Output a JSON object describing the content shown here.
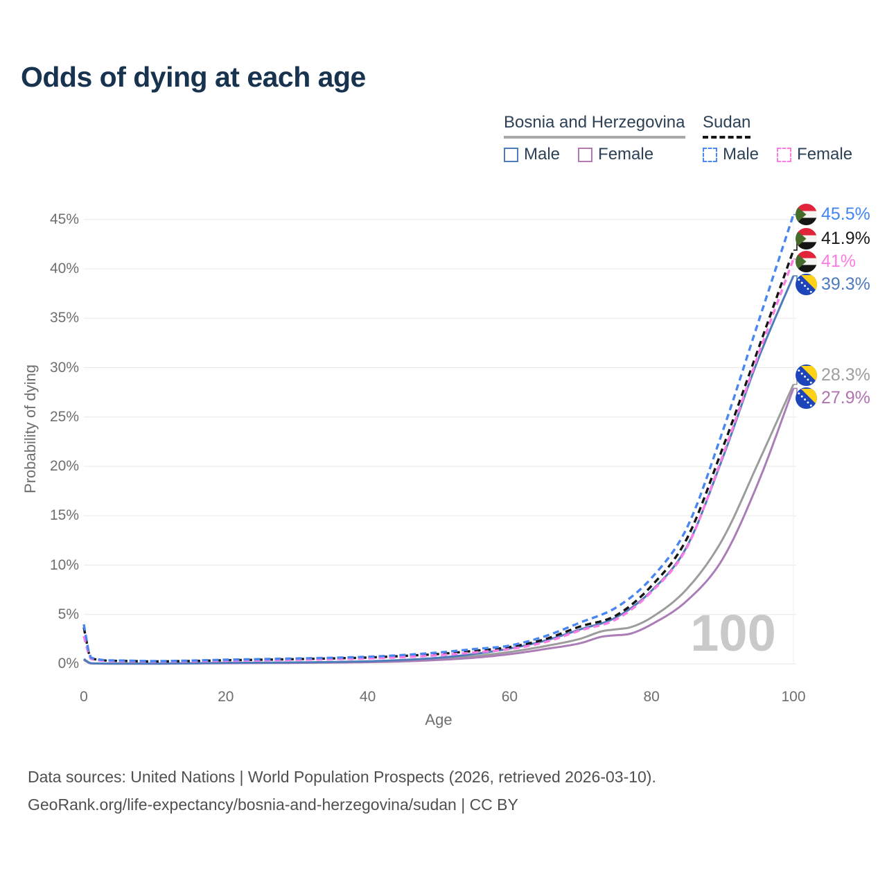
{
  "title": "Odds of dying at each age",
  "legend": {
    "groups": [
      {
        "name": "Bosnia and Herzegovina",
        "underline_color": "#a8a8a8",
        "underline_style": "solid",
        "items": [
          {
            "label": "Male",
            "color": "#4d7cba",
            "style": "solid"
          },
          {
            "label": "Female",
            "color": "#b579b2",
            "style": "solid"
          }
        ]
      },
      {
        "name": "Sudan",
        "underline_color": "#161616",
        "underline_style": "dashed",
        "items": [
          {
            "label": "Male",
            "color": "#4a86f0",
            "style": "dashed"
          },
          {
            "label": "Female",
            "color": "#fb7ce4",
            "style": "dashed"
          }
        ]
      }
    ]
  },
  "watermark": "100",
  "footer": {
    "line1": "Data sources: United Nations | World Population Prospects (2026, retrieved 2026-03-10).",
    "line2": "GeoRank.org/life-expectancy/bosnia-and-herzegovina/sudan | CC BY"
  },
  "colors": {
    "title_text": "#18334f",
    "legend_text": "#2c4156",
    "axis_text": "#6e6e6e",
    "gridline": "#e8e8e8",
    "watermark": "#c9c9c9",
    "footer_text": "#4f4f4f"
  },
  "chart_data": {
    "type": "line",
    "title": "Odds of dying at each age",
    "xlabel": "Age",
    "ylabel": "Probability of dying",
    "xlim": [
      0,
      100
    ],
    "ylim": [
      0,
      45
    ],
    "x_ticks": [
      0,
      20,
      40,
      60,
      80,
      100
    ],
    "y_ticks": [
      {
        "value": 0,
        "label": "0%"
      },
      {
        "value": 5,
        "label": "5%"
      },
      {
        "value": 10,
        "label": "10%"
      },
      {
        "value": 15,
        "label": "15%"
      },
      {
        "value": 20,
        "label": "20%"
      },
      {
        "value": 25,
        "label": "25%"
      },
      {
        "value": 30,
        "label": "30%"
      },
      {
        "value": 35,
        "label": "35%"
      },
      {
        "value": 40,
        "label": "40%"
      },
      {
        "value": 45,
        "label": "45%"
      }
    ],
    "grid": "horizontal",
    "legend_position": "top-right",
    "series": [
      {
        "name": "Bosnia and Herzegovina — Both sexes",
        "country": "Bosnia and Herzegovina",
        "sex": "both",
        "color": "#9c9c9c",
        "dashed": false,
        "flag": "bosnia",
        "end_label": {
          "text": "28.3%",
          "value": 28.3,
          "color": "#9e9e9e"
        },
        "points": [
          [
            0,
            0.45
          ],
          [
            1,
            0.05
          ],
          [
            5,
            0.025
          ],
          [
            10,
            0.025
          ],
          [
            15,
            0.05
          ],
          [
            20,
            0.08
          ],
          [
            25,
            0.1
          ],
          [
            30,
            0.12
          ],
          [
            35,
            0.16
          ],
          [
            40,
            0.21
          ],
          [
            45,
            0.32
          ],
          [
            50,
            0.5
          ],
          [
            55,
            0.78
          ],
          [
            60,
            1.2
          ],
          [
            65,
            1.8
          ],
          [
            70,
            2.55
          ],
          [
            73,
            3.3
          ],
          [
            75,
            3.5
          ],
          [
            77,
            3.7
          ],
          [
            80,
            4.7
          ],
          [
            85,
            7.6
          ],
          [
            90,
            12.6
          ],
          [
            95,
            20.3
          ],
          [
            100,
            28.3
          ]
        ]
      },
      {
        "name": "Bosnia and Herzegovina — Female",
        "country": "Bosnia and Herzegovina",
        "sex": "female",
        "color": "#ab7db6",
        "dashed": false,
        "flag": "bosnia",
        "end_label": {
          "text": "27.9%",
          "value": 27.9,
          "color": "#b073ae"
        },
        "points": [
          [
            0,
            0.4
          ],
          [
            1,
            0.045
          ],
          [
            5,
            0.02
          ],
          [
            10,
            0.02
          ],
          [
            15,
            0.04
          ],
          [
            20,
            0.06
          ],
          [
            25,
            0.08
          ],
          [
            30,
            0.1
          ],
          [
            35,
            0.13
          ],
          [
            40,
            0.17
          ],
          [
            45,
            0.25
          ],
          [
            50,
            0.4
          ],
          [
            55,
            0.62
          ],
          [
            60,
            0.98
          ],
          [
            65,
            1.5
          ],
          [
            70,
            2.1
          ],
          [
            73,
            2.75
          ],
          [
            75,
            2.9
          ],
          [
            77,
            3.05
          ],
          [
            80,
            4.0
          ],
          [
            85,
            6.4
          ],
          [
            90,
            10.6
          ],
          [
            95,
            18.3
          ],
          [
            100,
            27.9
          ]
        ]
      },
      {
        "name": "Bosnia and Herzegovina — Male",
        "country": "Bosnia and Herzegovina",
        "sex": "male",
        "color": "#4d7cba",
        "dashed": false,
        "flag": "bosnia",
        "end_label": {
          "text": "39.3%",
          "value": 39.3,
          "color": "#4d7cba"
        },
        "points": [
          [
            0,
            0.5
          ],
          [
            1,
            0.06
          ],
          [
            5,
            0.03
          ],
          [
            10,
            0.03
          ],
          [
            15,
            0.06
          ],
          [
            20,
            0.1
          ],
          [
            25,
            0.12
          ],
          [
            30,
            0.15
          ],
          [
            35,
            0.19
          ],
          [
            40,
            0.26
          ],
          [
            45,
            0.4
          ],
          [
            50,
            0.62
          ],
          [
            55,
            1.0
          ],
          [
            60,
            1.55
          ],
          [
            65,
            2.35
          ],
          [
            70,
            3.5
          ],
          [
            75,
            4.7
          ],
          [
            80,
            7.4
          ],
          [
            85,
            11.9
          ],
          [
            90,
            20.8
          ],
          [
            95,
            30.8
          ],
          [
            100,
            39.3
          ]
        ]
      },
      {
        "name": "Sudan — Both sexes",
        "country": "Sudan",
        "sex": "both",
        "color": "#161616",
        "dashed": true,
        "flag": "sudan",
        "end_label": {
          "text": "41.9%",
          "value": 41.9,
          "color": "#1a1a1a"
        },
        "points": [
          [
            0,
            3.7
          ],
          [
            1,
            0.56
          ],
          [
            5,
            0.3
          ],
          [
            10,
            0.25
          ],
          [
            15,
            0.29
          ],
          [
            20,
            0.36
          ],
          [
            25,
            0.42
          ],
          [
            30,
            0.48
          ],
          [
            35,
            0.55
          ],
          [
            40,
            0.64
          ],
          [
            45,
            0.8
          ],
          [
            50,
            1.0
          ],
          [
            55,
            1.32
          ],
          [
            60,
            1.7
          ],
          [
            65,
            2.5
          ],
          [
            70,
            3.8
          ],
          [
            75,
            4.9
          ],
          [
            80,
            7.9
          ],
          [
            85,
            12.7
          ],
          [
            90,
            21.8
          ],
          [
            95,
            31.8
          ],
          [
            100,
            41.9
          ]
        ]
      },
      {
        "name": "Sudan — Female",
        "country": "Sudan",
        "sex": "female",
        "color": "#fb7ce4",
        "dashed": true,
        "flag": "sudan",
        "end_label": {
          "text": "41%",
          "value": 41.0,
          "color": "#fb7ce4"
        },
        "points": [
          [
            0,
            2.8
          ],
          [
            1,
            0.5
          ],
          [
            5,
            0.27
          ],
          [
            10,
            0.22
          ],
          [
            15,
            0.25
          ],
          [
            20,
            0.31
          ],
          [
            25,
            0.36
          ],
          [
            30,
            0.41
          ],
          [
            35,
            0.47
          ],
          [
            40,
            0.55
          ],
          [
            45,
            0.68
          ],
          [
            50,
            0.88
          ],
          [
            55,
            1.15
          ],
          [
            60,
            1.5
          ],
          [
            65,
            2.2
          ],
          [
            70,
            3.4
          ],
          [
            75,
            4.5
          ],
          [
            80,
            7.3
          ],
          [
            85,
            11.8
          ],
          [
            90,
            21.0
          ],
          [
            95,
            31.2
          ],
          [
            100,
            41.0
          ]
        ]
      },
      {
        "name": "Sudan — Male",
        "country": "Sudan",
        "sex": "male",
        "color": "#4a86f0",
        "dashed": true,
        "flag": "sudan",
        "end_label": {
          "text": "45.5%",
          "value": 45.5,
          "color": "#4285f4"
        },
        "points": [
          [
            0,
            4.0
          ],
          [
            1,
            0.62
          ],
          [
            5,
            0.34
          ],
          [
            10,
            0.28
          ],
          [
            15,
            0.33
          ],
          [
            20,
            0.42
          ],
          [
            25,
            0.48
          ],
          [
            30,
            0.55
          ],
          [
            35,
            0.62
          ],
          [
            40,
            0.72
          ],
          [
            45,
            0.9
          ],
          [
            50,
            1.15
          ],
          [
            55,
            1.5
          ],
          [
            60,
            1.85
          ],
          [
            65,
            2.8
          ],
          [
            70,
            4.2
          ],
          [
            75,
            5.7
          ],
          [
            80,
            8.7
          ],
          [
            85,
            13.8
          ],
          [
            90,
            23.5
          ],
          [
            95,
            34.5
          ],
          [
            100,
            45.5
          ]
        ]
      }
    ]
  }
}
